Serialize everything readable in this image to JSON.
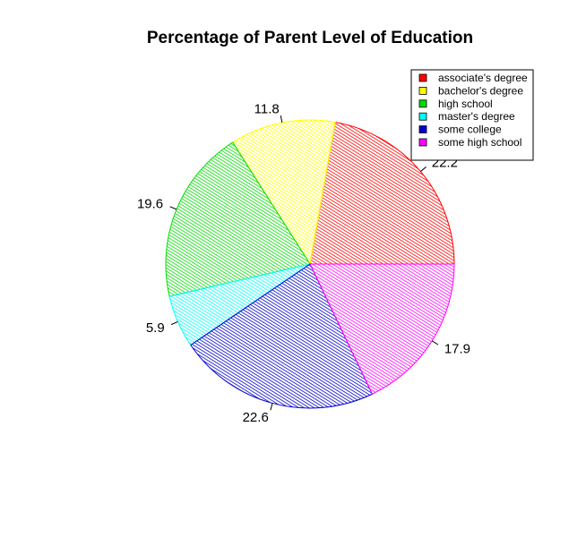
{
  "chart_data": {
    "type": "pie",
    "title": "Percentage of Parent Level of Education",
    "fill_style": "diagonal-hatch",
    "legend_position": "top-right",
    "slices": [
      {
        "label": "associate's degree",
        "value": 22.2,
        "color": "#ff0000"
      },
      {
        "label": "bachelor's degree",
        "value": 11.8,
        "color": "#ffff00"
      },
      {
        "label": "high school",
        "value": 19.6,
        "color": "#00dd00"
      },
      {
        "label": "master's degree",
        "value": 5.9,
        "color": "#00ffff"
      },
      {
        "label": "some college",
        "value": 22.6,
        "color": "#0000cc"
      },
      {
        "label": "some high school",
        "value": 17.9,
        "color": "#ff00ff"
      }
    ]
  }
}
